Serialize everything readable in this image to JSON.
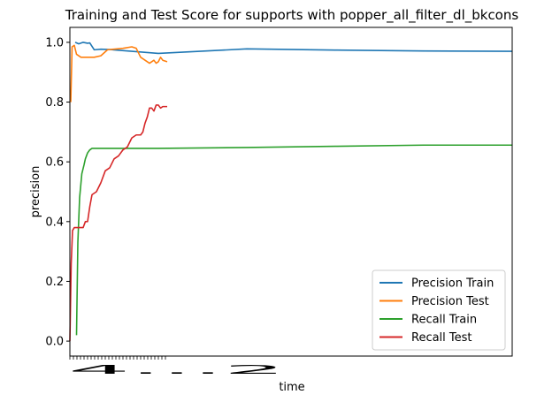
{
  "chart_data": {
    "type": "line",
    "title": "Training and Test Score for supports with popper_all_filter_dl_bkcons",
    "xlabel": "time",
    "ylabel": "precision",
    "ylim": [
      -0.05,
      1.05
    ],
    "yticks": [
      0.0,
      0.2,
      0.4,
      0.6,
      0.8,
      1.0
    ],
    "ytick_labels": [
      "0.0",
      "0.2",
      "0.4",
      "0.6",
      "0.8",
      "1.0"
    ],
    "xlim": [
      0,
      100
    ],
    "xtick_labels_overlapping": "4...2",
    "legend_position": "lower right",
    "grid": false,
    "series": [
      {
        "name": "Precision Train",
        "color": "#1f77b4",
        "x": [
          1.2,
          2.0,
          3.0,
          4.0,
          4.5,
          5.5,
          7.0,
          9.0,
          20.0,
          40.0,
          60.0,
          80.0,
          100.0
        ],
        "y": [
          1.0,
          0.995,
          1.0,
          0.997,
          0.998,
          0.975,
          0.977,
          0.976,
          0.963,
          0.978,
          0.974,
          0.971,
          0.97
        ]
      },
      {
        "name": "Precision Test",
        "color": "#ff7f0e",
        "x": [
          0.2,
          0.5,
          1.0,
          1.5,
          2.5,
          4.0,
          5.5,
          7.0,
          8.5,
          12.0,
          14.0,
          15.0,
          16.0,
          17.0,
          18.0,
          19.0,
          19.5,
          20.0,
          20.5,
          21.0,
          22.0
        ],
        "y": [
          0.8,
          0.985,
          0.99,
          0.96,
          0.95,
          0.95,
          0.95,
          0.955,
          0.975,
          0.98,
          0.985,
          0.98,
          0.95,
          0.94,
          0.93,
          0.94,
          0.93,
          0.935,
          0.95,
          0.94,
          0.935
        ]
      },
      {
        "name": "Recall Train",
        "color": "#2ca02c",
        "x": [
          1.5,
          1.8,
          2.2,
          2.7,
          3.2,
          3.5,
          4.0,
          4.5,
          5.0,
          5.5,
          6.0,
          8.0,
          20.0,
          40.0,
          60.0,
          80.0,
          100.0
        ],
        "y": [
          0.02,
          0.33,
          0.48,
          0.56,
          0.59,
          0.61,
          0.63,
          0.64,
          0.645,
          0.645,
          0.645,
          0.645,
          0.645,
          0.648,
          0.652,
          0.656,
          0.656
        ]
      },
      {
        "name": "Recall Test",
        "color": "#d62728",
        "x": [
          0.0,
          0.3,
          0.6,
          1.0,
          2.0,
          3.0,
          3.5,
          4.0,
          4.5,
          5.0,
          6.0,
          7.0,
          8.0,
          9.0,
          10.0,
          11.0,
          12.0,
          13.0,
          14.0,
          15.0,
          16.0,
          16.5,
          17.0,
          17.5,
          18.0,
          18.5,
          19.0,
          19.5,
          20.0,
          20.5,
          21.0,
          22.0
        ],
        "y": [
          0.0,
          0.26,
          0.37,
          0.38,
          0.38,
          0.38,
          0.4,
          0.4,
          0.45,
          0.49,
          0.5,
          0.53,
          0.57,
          0.58,
          0.61,
          0.62,
          0.64,
          0.65,
          0.68,
          0.69,
          0.69,
          0.7,
          0.73,
          0.75,
          0.78,
          0.78,
          0.77,
          0.79,
          0.79,
          0.78,
          0.785,
          0.785
        ]
      }
    ]
  }
}
